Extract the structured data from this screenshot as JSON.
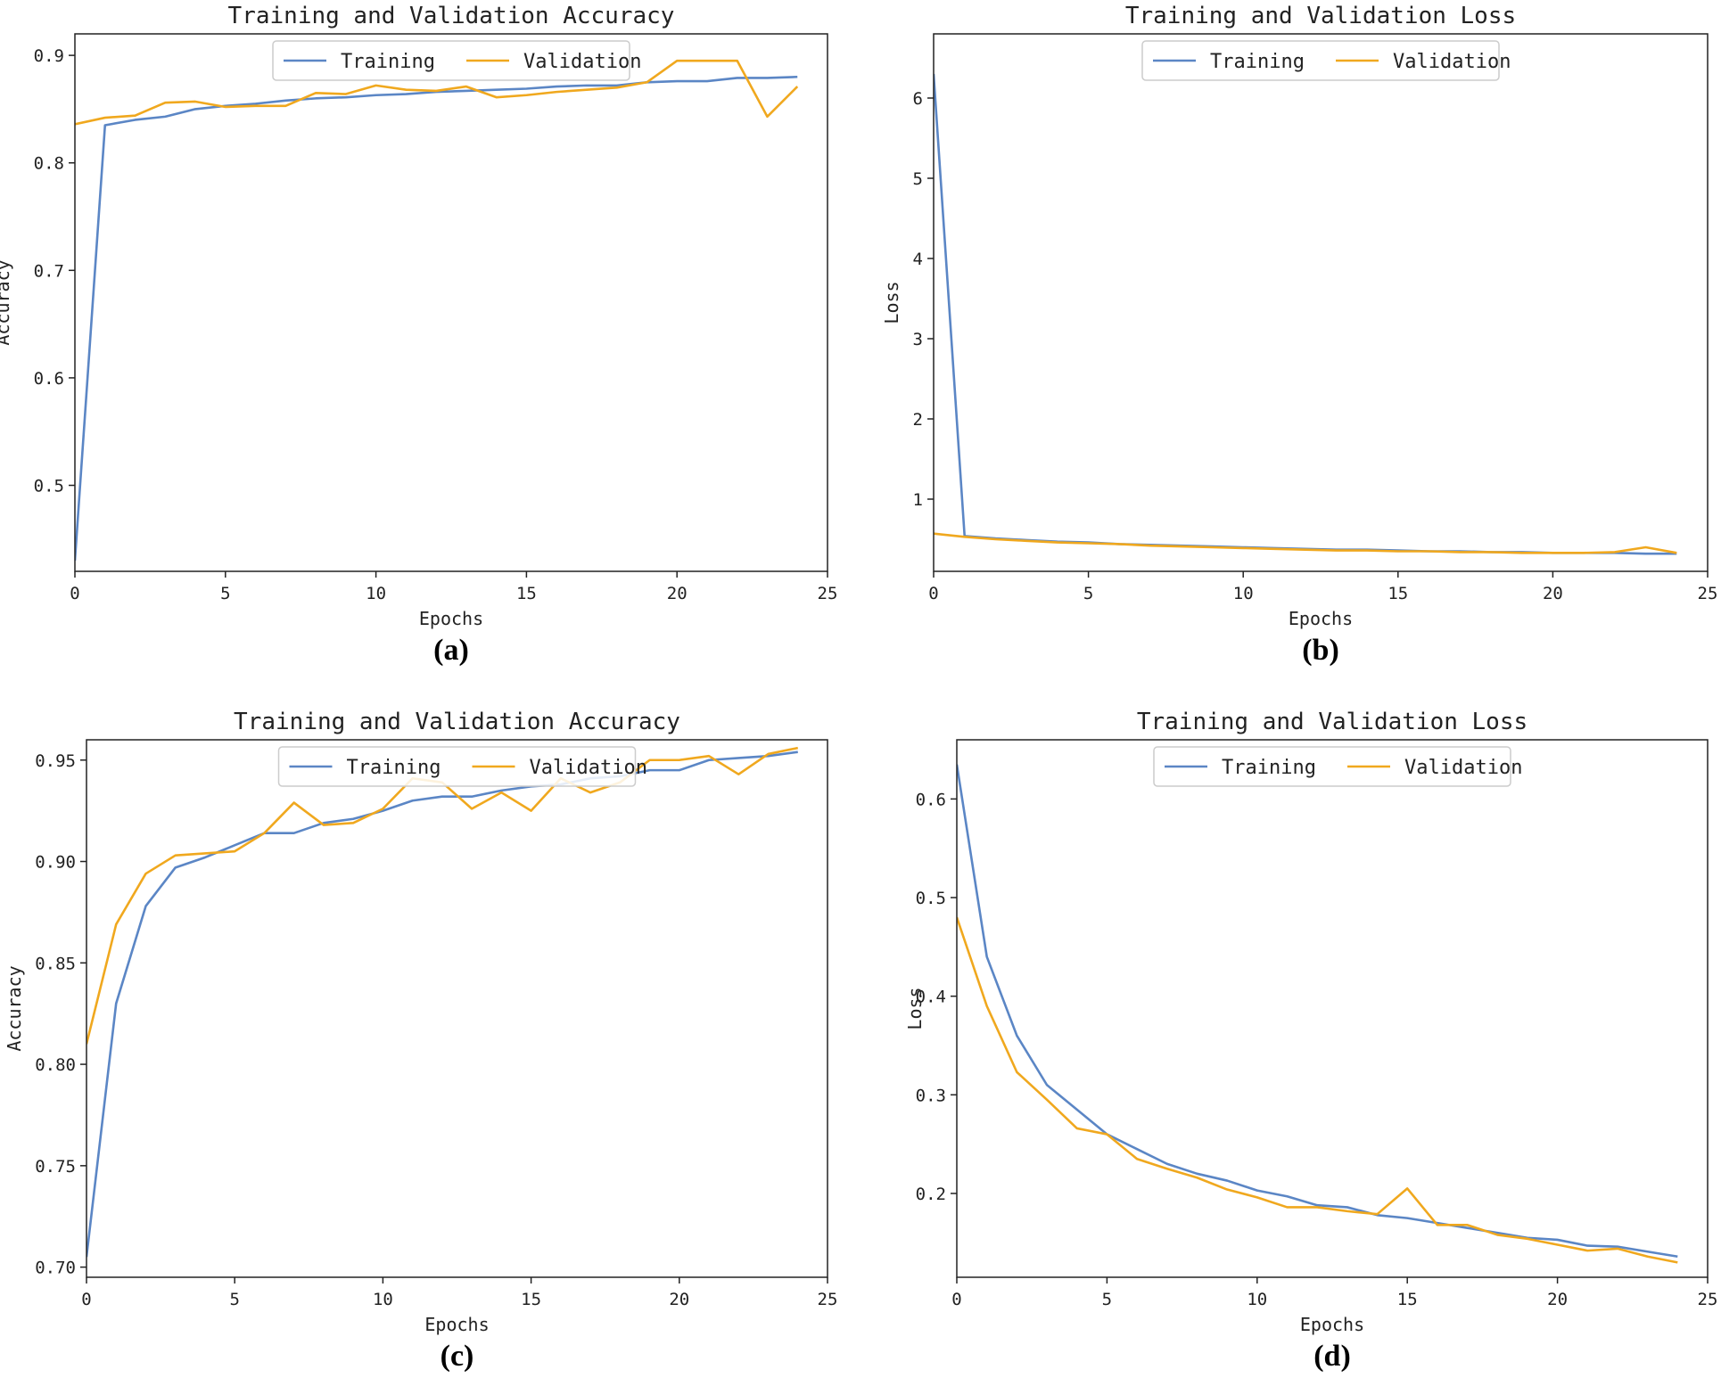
{
  "colors": {
    "training": "#5b86c5",
    "validation": "#f0a81e",
    "axis": "#222222",
    "legend_border": "#cccccc"
  },
  "chart_data": [
    {
      "type": "line",
      "caption": "(a)",
      "title": "Training and Validation Accuracy",
      "xlabel": "Epochs",
      "ylabel": "Accuracy",
      "xlim": [
        0,
        25
      ],
      "ylim": [
        0.42,
        0.92
      ],
      "xticks": [
        0,
        5,
        10,
        15,
        20,
        25
      ],
      "yticks": [
        0.5,
        0.6,
        0.7,
        0.8,
        0.9
      ],
      "ytick_labels": [
        "0.5",
        "0.6",
        "0.7",
        "0.8",
        "0.9"
      ],
      "legend": "upper-center",
      "x": [
        0,
        1,
        2,
        3,
        4,
        5,
        6,
        7,
        8,
        9,
        10,
        11,
        12,
        13,
        14,
        15,
        16,
        17,
        18,
        19,
        20,
        21,
        22,
        23,
        24
      ],
      "series": [
        {
          "name": "Training",
          "values": [
            0.43,
            0.835,
            0.84,
            0.843,
            0.85,
            0.853,
            0.855,
            0.858,
            0.86,
            0.861,
            0.863,
            0.864,
            0.866,
            0.867,
            0.868,
            0.869,
            0.871,
            0.872,
            0.872,
            0.875,
            0.876,
            0.876,
            0.879,
            0.879,
            0.88
          ]
        },
        {
          "name": "Validation",
          "values": [
            0.836,
            0.842,
            0.844,
            0.856,
            0.857,
            0.852,
            0.853,
            0.853,
            0.865,
            0.864,
            0.872,
            0.868,
            0.867,
            0.871,
            0.861,
            0.863,
            0.866,
            0.868,
            0.87,
            0.875,
            0.895,
            0.895,
            0.895,
            0.843,
            0.871
          ]
        }
      ]
    },
    {
      "type": "line",
      "caption": "(b)",
      "title": "Training and Validation Loss",
      "xlabel": "Epochs",
      "ylabel": "Loss",
      "xlim": [
        0,
        25
      ],
      "ylim": [
        0.1,
        6.8
      ],
      "xticks": [
        0,
        5,
        10,
        15,
        20,
        25
      ],
      "yticks": [
        1,
        2,
        3,
        4,
        5,
        6
      ],
      "ytick_labels": [
        "1",
        "2",
        "3",
        "4",
        "5",
        "6"
      ],
      "legend": "upper-center",
      "x": [
        0,
        1,
        2,
        3,
        4,
        5,
        6,
        7,
        8,
        9,
        10,
        11,
        12,
        13,
        14,
        15,
        16,
        17,
        18,
        19,
        20,
        21,
        22,
        23,
        24
      ],
      "series": [
        {
          "name": "Training",
          "values": [
            6.3,
            0.54,
            0.51,
            0.49,
            0.47,
            0.46,
            0.44,
            0.43,
            0.42,
            0.41,
            0.4,
            0.39,
            0.38,
            0.37,
            0.37,
            0.36,
            0.35,
            0.35,
            0.34,
            0.34,
            0.33,
            0.33,
            0.33,
            0.32,
            0.32
          ]
        },
        {
          "name": "Validation",
          "values": [
            0.57,
            0.53,
            0.5,
            0.48,
            0.46,
            0.45,
            0.44,
            0.42,
            0.41,
            0.4,
            0.39,
            0.38,
            0.37,
            0.36,
            0.36,
            0.35,
            0.35,
            0.34,
            0.34,
            0.33,
            0.33,
            0.33,
            0.34,
            0.4,
            0.33
          ]
        }
      ]
    },
    {
      "type": "line",
      "caption": "(c)",
      "title": "Training and Validation Accuracy",
      "xlabel": "Epochs",
      "ylabel": "Accuracy",
      "xlim": [
        0,
        25
      ],
      "ylim": [
        0.695,
        0.96
      ],
      "xticks": [
        0,
        5,
        10,
        15,
        20,
        25
      ],
      "yticks": [
        0.7,
        0.75,
        0.8,
        0.85,
        0.9,
        0.95
      ],
      "ytick_labels": [
        "0.70",
        "0.75",
        "0.80",
        "0.85",
        "0.90",
        "0.95"
      ],
      "legend": "upper-center",
      "x": [
        0,
        1,
        2,
        3,
        4,
        5,
        6,
        7,
        8,
        9,
        10,
        11,
        12,
        13,
        14,
        15,
        16,
        17,
        18,
        19,
        20,
        21,
        22,
        23,
        24
      ],
      "series": [
        {
          "name": "Training",
          "values": [
            0.705,
            0.83,
            0.878,
            0.897,
            0.902,
            0.908,
            0.914,
            0.914,
            0.919,
            0.921,
            0.925,
            0.93,
            0.932,
            0.932,
            0.935,
            0.937,
            0.938,
            0.941,
            0.942,
            0.945,
            0.945,
            0.95,
            0.951,
            0.952,
            0.954
          ]
        },
        {
          "name": "Validation",
          "values": [
            0.81,
            0.869,
            0.894,
            0.903,
            0.904,
            0.905,
            0.914,
            0.929,
            0.918,
            0.919,
            0.926,
            0.941,
            0.939,
            0.926,
            0.934,
            0.925,
            0.941,
            0.934,
            0.939,
            0.95,
            0.95,
            0.952,
            0.943,
            0.953,
            0.956
          ]
        }
      ]
    },
    {
      "type": "line",
      "caption": "(d)",
      "title": "Training and Validation Loss",
      "xlabel": "Epochs",
      "ylabel": "Loss",
      "xlim": [
        0,
        25
      ],
      "ylim": [
        0.115,
        0.66
      ],
      "xticks": [
        0,
        5,
        10,
        15,
        20,
        25
      ],
      "yticks": [
        0.2,
        0.3,
        0.4,
        0.5,
        0.6
      ],
      "ytick_labels": [
        "0.2",
        "0.3",
        "0.4",
        "0.5",
        "0.6"
      ],
      "legend": "upper-center",
      "x": [
        0,
        1,
        2,
        3,
        4,
        5,
        6,
        7,
        8,
        9,
        10,
        11,
        12,
        13,
        14,
        15,
        16,
        17,
        18,
        19,
        20,
        21,
        22,
        23,
        24
      ],
      "series": [
        {
          "name": "Training",
          "values": [
            0.635,
            0.44,
            0.36,
            0.31,
            0.285,
            0.26,
            0.245,
            0.23,
            0.22,
            0.213,
            0.203,
            0.197,
            0.188,
            0.186,
            0.178,
            0.175,
            0.17,
            0.165,
            0.16,
            0.155,
            0.153,
            0.147,
            0.146,
            0.141,
            0.136
          ]
        },
        {
          "name": "Validation",
          "values": [
            0.48,
            0.39,
            0.323,
            0.295,
            0.266,
            0.26,
            0.235,
            0.225,
            0.216,
            0.204,
            0.196,
            0.186,
            0.186,
            0.182,
            0.179,
            0.205,
            0.168,
            0.168,
            0.158,
            0.154,
            0.148,
            0.142,
            0.144,
            0.136,
            0.13
          ]
        }
      ]
    }
  ]
}
